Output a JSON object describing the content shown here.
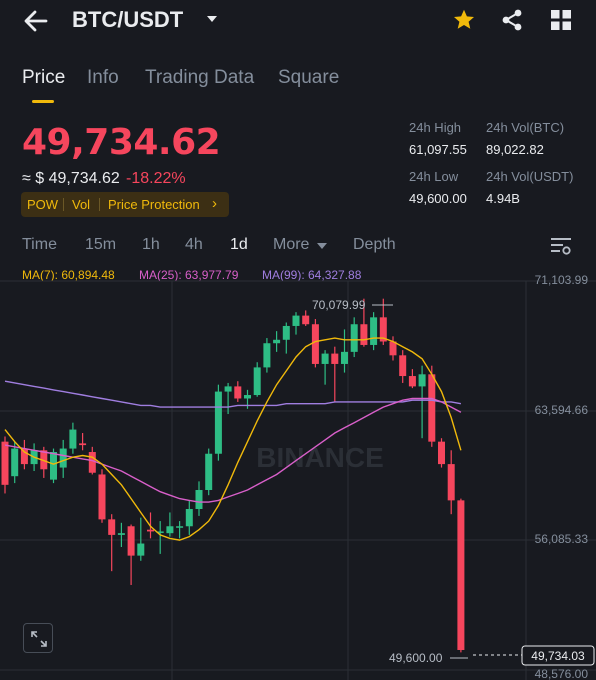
{
  "header": {
    "pair": "BTC/USDT",
    "icons": [
      "back-arrow-icon",
      "dropdown-caret-icon",
      "star-icon",
      "share-icon",
      "grid-menu-icon"
    ],
    "accent_color": "#f0b90b"
  },
  "tabs": [
    {
      "label": "Price",
      "active": true
    },
    {
      "label": "Info",
      "active": false
    },
    {
      "label": "Trading Data",
      "active": false
    },
    {
      "label": "Square",
      "active": false
    }
  ],
  "price": {
    "last": "49,734.62",
    "usd": "≈ $ 49,734.62",
    "change": "-18.22%",
    "color_down": "#f6465d",
    "color_up": "#2ebd85"
  },
  "tags": [
    "POW",
    "Vol",
    "Price Protection",
    "›"
  ],
  "stats": {
    "high_label": "24h High",
    "high": "61,097.55",
    "vol_btc_label": "24h Vol(BTC)",
    "vol_btc": "89,022.82",
    "low_label": "24h Low",
    "low": "49,600.00",
    "vol_usdt_label": "24h Vol(USDT)",
    "vol_usdt": "4.94B"
  },
  "intervals": [
    {
      "label": "Time",
      "active": false
    },
    {
      "label": "15m",
      "active": false
    },
    {
      "label": "1h",
      "active": false
    },
    {
      "label": "4h",
      "active": false
    },
    {
      "label": "1d",
      "active": true
    },
    {
      "label": "More",
      "active": false
    },
    {
      "label": "Depth",
      "active": false
    }
  ],
  "ma": {
    "ma7": "MA(7): 60,894.48",
    "ma25": "MA(25): 63,977.79",
    "ma99": "MA(99): 64,327.88",
    "ma7_color": "#f0b90b",
    "ma25_color": "#d85fc9",
    "ma99_color": "#a07ee0"
  },
  "chart": {
    "axis_labels": [
      "71,103.99",
      "63,594.66",
      "56,085.33",
      "48,576.00"
    ],
    "high_marker": "70,079.99",
    "low_marker": "49,600.00",
    "last_price_tag": "49,734.03",
    "watermark": "BINANCE"
  },
  "chart_data": {
    "type": "candlestick",
    "ylim": [
      48576.0,
      71103.99
    ],
    "y_ticks": [
      71103.99,
      63594.66,
      56085.33,
      48576.0
    ],
    "candles": [
      {
        "o": 61800,
        "h": 62100,
        "l": 58800,
        "c": 59300
      },
      {
        "o": 59800,
        "h": 61800,
        "l": 59400,
        "c": 61400
      },
      {
        "o": 61400,
        "h": 61900,
        "l": 60200,
        "c": 60500
      },
      {
        "o": 60500,
        "h": 61700,
        "l": 60100,
        "c": 61300
      },
      {
        "o": 61300,
        "h": 61500,
        "l": 59700,
        "c": 60200
      },
      {
        "o": 59600,
        "h": 61400,
        "l": 59400,
        "c": 61200
      },
      {
        "o": 60300,
        "h": 61900,
        "l": 59700,
        "c": 61400
      },
      {
        "o": 61400,
        "h": 62900,
        "l": 61100,
        "c": 62500
      },
      {
        "o": 61700,
        "h": 62300,
        "l": 61300,
        "c": 61600
      },
      {
        "o": 61200,
        "h": 61500,
        "l": 59900,
        "c": 60000
      },
      {
        "o": 59900,
        "h": 60200,
        "l": 57100,
        "c": 57300
      },
      {
        "o": 57300,
        "h": 57600,
        "l": 54300,
        "c": 56400
      },
      {
        "o": 56400,
        "h": 57100,
        "l": 55700,
        "c": 56500
      },
      {
        "o": 56900,
        "h": 57000,
        "l": 53500,
        "c": 55200
      },
      {
        "o": 55200,
        "h": 57400,
        "l": 54900,
        "c": 55900
      },
      {
        "o": 56700,
        "h": 57700,
        "l": 56200,
        "c": 56600
      },
      {
        "o": 56600,
        "h": 57200,
        "l": 55300,
        "c": 56600
      },
      {
        "o": 56500,
        "h": 57700,
        "l": 56300,
        "c": 56900
      },
      {
        "o": 56900,
        "h": 57200,
        "l": 56200,
        "c": 56900
      },
      {
        "o": 56900,
        "h": 58400,
        "l": 56400,
        "c": 57900
      },
      {
        "o": 57900,
        "h": 59500,
        "l": 57500,
        "c": 59000
      },
      {
        "o": 59000,
        "h": 61400,
        "l": 58700,
        "c": 61100
      },
      {
        "o": 61100,
        "h": 65100,
        "l": 60700,
        "c": 64700
      },
      {
        "o": 64700,
        "h": 65200,
        "l": 63400,
        "c": 65000
      },
      {
        "o": 65000,
        "h": 65300,
        "l": 64100,
        "c": 64300
      },
      {
        "o": 64300,
        "h": 64800,
        "l": 63700,
        "c": 64500
      },
      {
        "o": 64500,
        "h": 66400,
        "l": 64400,
        "c": 66100
      },
      {
        "o": 66100,
        "h": 67800,
        "l": 65800,
        "c": 67500
      },
      {
        "o": 67500,
        "h": 68200,
        "l": 67000,
        "c": 67700
      },
      {
        "o": 67700,
        "h": 68700,
        "l": 66900,
        "c": 68500
      },
      {
        "o": 68500,
        "h": 69300,
        "l": 68000,
        "c": 69100
      },
      {
        "o": 69100,
        "h": 69400,
        "l": 68500,
        "c": 68600
      },
      {
        "o": 68600,
        "h": 68900,
        "l": 66100,
        "c": 66300
      },
      {
        "o": 66300,
        "h": 67100,
        "l": 65100,
        "c": 66900
      },
      {
        "o": 66900,
        "h": 67300,
        "l": 64100,
        "c": 66300
      },
      {
        "o": 66300,
        "h": 68300,
        "l": 65800,
        "c": 67000
      },
      {
        "o": 67000,
        "h": 69000,
        "l": 66700,
        "c": 68600
      },
      {
        "o": 68600,
        "h": 70080,
        "l": 67300,
        "c": 67400
      },
      {
        "o": 67400,
        "h": 69300,
        "l": 67100,
        "c": 69000
      },
      {
        "o": 69000,
        "h": 70080,
        "l": 67400,
        "c": 67600
      },
      {
        "o": 67600,
        "h": 67900,
        "l": 66500,
        "c": 66800
      },
      {
        "o": 66800,
        "h": 67100,
        "l": 65200,
        "c": 65600
      },
      {
        "o": 65600,
        "h": 66000,
        "l": 64900,
        "c": 65000
      },
      {
        "o": 65000,
        "h": 66200,
        "l": 62000,
        "c": 65700
      },
      {
        "o": 65700,
        "h": 66200,
        "l": 61500,
        "c": 61800
      },
      {
        "o": 61800,
        "h": 62000,
        "l": 60300,
        "c": 60500
      },
      {
        "o": 60500,
        "h": 61300,
        "l": 57600,
        "c": 58400
      },
      {
        "o": 58400,
        "h": 58500,
        "l": 49600,
        "c": 49734
      }
    ],
    "ma7": [
      62500,
      61800,
      61200,
      60900,
      60700,
      60500,
      60700,
      60900,
      61000,
      60900,
      60500,
      59900,
      59300,
      58500,
      57700,
      56900,
      56400,
      56200,
      56100,
      56300,
      56700,
      57200,
      58100,
      59300,
      60600,
      61800,
      63000,
      64100,
      65100,
      65900,
      66700,
      67300,
      67600,
      67700,
      67800,
      67700,
      67700,
      67700,
      67800,
      67800,
      67600,
      67300,
      67000,
      66600,
      65700,
      64700,
      63200,
      61300
    ],
    "ma25": [
      61600,
      61500,
      61400,
      61300,
      61200,
      61100,
      61000,
      60900,
      60800,
      60700,
      60500,
      60300,
      60100,
      59800,
      59500,
      59200,
      58900,
      58700,
      58500,
      58400,
      58300,
      58300,
      58400,
      58600,
      58800,
      59000,
      59300,
      59600,
      59900,
      60300,
      60700,
      61100,
      61500,
      61900,
      62300,
      62600,
      62900,
      63200,
      63500,
      63800,
      64000,
      64200,
      64300,
      64300,
      64300,
      64100,
      63800,
      63500
    ],
    "ma99": [
      65300,
      65200,
      65100,
      65000,
      64900,
      64800,
      64700,
      64600,
      64500,
      64400,
      64300,
      64200,
      64100,
      64000,
      63900,
      63900,
      63800,
      63800,
      63800,
      63800,
      63800,
      63800,
      63800,
      63800,
      63900,
      63900,
      63900,
      63900,
      63900,
      64000,
      64000,
      64000,
      64000,
      64000,
      64100,
      64100,
      64100,
      64100,
      64100,
      64100,
      64100,
      64100,
      64200,
      64200,
      64200,
      64100,
      64100,
      64000
    ]
  }
}
